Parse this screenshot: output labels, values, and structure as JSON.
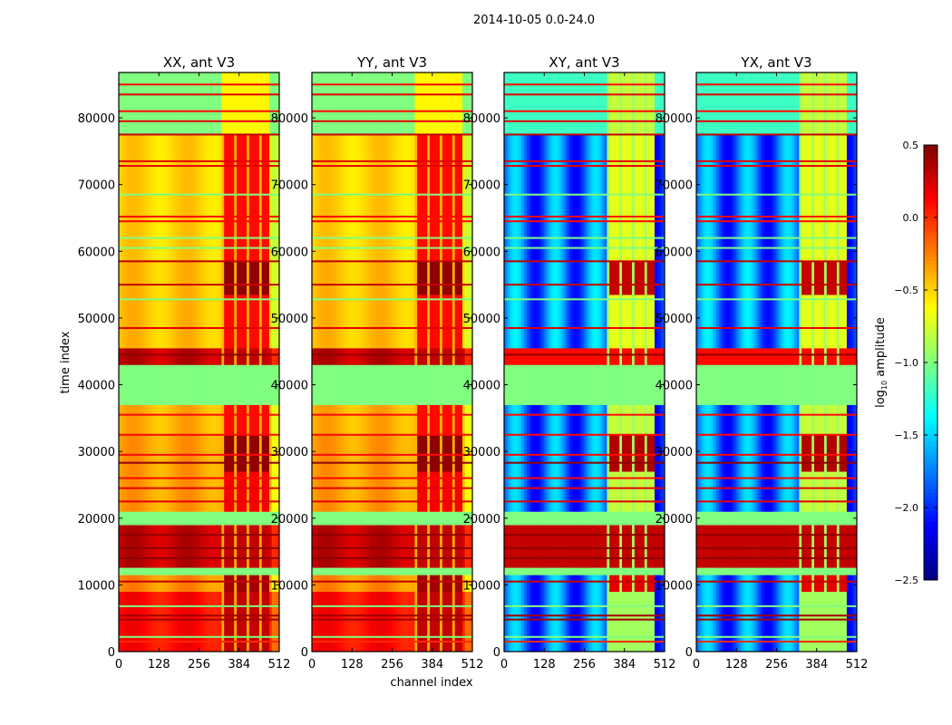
{
  "chart_data": {
    "type": "heatmap",
    "suptitle": "2014-10-05 0.0-24.0",
    "xlabel": "channel index",
    "ylabel": "time index",
    "xlim": [
      0,
      512
    ],
    "ylim": [
      0,
      86800
    ],
    "xticks": [
      "0",
      "128",
      "256",
      "384",
      "512"
    ],
    "xtick_values": [
      0,
      128,
      256,
      384,
      512
    ],
    "yticks": [
      "0",
      "10000",
      "20000",
      "30000",
      "40000",
      "50000",
      "60000",
      "70000",
      "80000"
    ],
    "ytick_values": [
      0,
      10000,
      20000,
      30000,
      40000,
      50000,
      60000,
      70000,
      80000
    ],
    "colormap": "jet",
    "colorbar": {
      "label": "log10 amplitude",
      "label_main": "log",
      "label_sub": "10",
      "label_rest": " amplitude",
      "vmin": -2.5,
      "vmax": 0.5,
      "ticks": [
        "0.5",
        "0.0",
        "−0.5",
        "−1.0",
        "−1.5",
        "−2.0",
        "−2.5"
      ],
      "tick_values": [
        0.5,
        0.0,
        -0.5,
        -1.0,
        -1.5,
        -2.0,
        -2.5
      ]
    },
    "panels": [
      {
        "title": "XX, ant V3",
        "kind": "parallel",
        "show_ylabel": true,
        "show_xlabel": false
      },
      {
        "title": "YY, ant V3",
        "kind": "parallel",
        "show_ylabel": false,
        "show_xlabel": true
      },
      {
        "title": "XY, ant V3",
        "kind": "cross",
        "show_ylabel": false,
        "show_xlabel": false
      },
      {
        "title": "YX, ant V3",
        "kind": "cross",
        "show_ylabel": false,
        "show_xlabel": false
      }
    ],
    "rfi_channel_range": [
      325,
      480
    ],
    "segments": [
      {
        "t": [
          0,
          9000
        ],
        "parallel": 0.1,
        "parallel_rfi": 0.3,
        "cross": -1.8,
        "cross_rfi": -0.9
      },
      {
        "t": [
          9000,
          11500
        ],
        "parallel": -0.3,
        "parallel_rfi": 0.4,
        "cross": -1.8,
        "cross_rfi": 0.2
      },
      {
        "t": [
          11500,
          12600
        ],
        "parallel": -1.0,
        "parallel_rfi": -1.0,
        "cross": -1.0,
        "cross_rfi": -1.0
      },
      {
        "t": [
          12600,
          19000
        ],
        "parallel": 0.3,
        "parallel_rfi": 0.3,
        "cross": 0.3,
        "cross_rfi": 0.3
      },
      {
        "t": [
          19000,
          21000
        ],
        "parallel": -1.0,
        "parallel_rfi": -1.0,
        "cross": -1.0,
        "cross_rfi": -1.0
      },
      {
        "t": [
          21000,
          27000
        ],
        "parallel": -0.35,
        "parallel_rfi": 0.15,
        "cross": -1.8,
        "cross_rfi": -0.8
      },
      {
        "t": [
          27000,
          32500
        ],
        "parallel": -0.35,
        "parallel_rfi": 0.45,
        "cross": -1.8,
        "cross_rfi": 0.35
      },
      {
        "t": [
          32500,
          37000
        ],
        "parallel": -0.4,
        "parallel_rfi": 0.1,
        "cross": -1.8,
        "cross_rfi": -0.8
      },
      {
        "t": [
          37000,
          43000
        ],
        "parallel": -1.0,
        "parallel_rfi": -1.0,
        "cross": -1.0,
        "cross_rfi": -1.0
      },
      {
        "t": [
          43000,
          45500
        ],
        "parallel": 0.3,
        "parallel_rfi": 0.3,
        "cross": 0.1,
        "cross_rfi": 0.1
      },
      {
        "t": [
          45500,
          53500
        ],
        "parallel": -0.45,
        "parallel_rfi": 0.1,
        "cross": -1.75,
        "cross_rfi": -0.7
      },
      {
        "t": [
          53500,
          58500
        ],
        "parallel": -0.45,
        "parallel_rfi": 0.45,
        "cross": -1.75,
        "cross_rfi": 0.3
      },
      {
        "t": [
          58500,
          77500
        ],
        "parallel": -0.5,
        "parallel_rfi": 0.1,
        "cross": -1.8,
        "cross_rfi": -0.7
      },
      {
        "t": [
          77500,
          86800
        ],
        "parallel": -1.0,
        "parallel_rfi": -0.6,
        "cross": -1.2,
        "cross_rfi": -0.8
      }
    ],
    "lines": [
      {
        "t": 1500,
        "value": 0.0
      },
      {
        "t": 2200,
        "value": -1.0
      },
      {
        "t": 4800,
        "value": 0.4
      },
      {
        "t": 5400,
        "value": 0.4
      },
      {
        "t": 6800,
        "value": -1.0
      },
      {
        "t": 10500,
        "value": 0.3
      },
      {
        "t": 14000,
        "value": 0.45
      },
      {
        "t": 15500,
        "value": 0.45
      },
      {
        "t": 17500,
        "value": 0.45
      },
      {
        "t": 22500,
        "value": 0.2
      },
      {
        "t": 24500,
        "value": 0.2
      },
      {
        "t": 26000,
        "value": 0.1
      },
      {
        "t": 28300,
        "value": 0.45
      },
      {
        "t": 29500,
        "value": 0.1
      },
      {
        "t": 32500,
        "value": 0.1
      },
      {
        "t": 35500,
        "value": 0.1
      },
      {
        "t": 44500,
        "value": 0.45
      },
      {
        "t": 48500,
        "value": 0.2
      },
      {
        "t": 52800,
        "value": -1.0
      },
      {
        "t": 55000,
        "value": 0.3
      },
      {
        "t": 58500,
        "value": 0.3
      },
      {
        "t": 60500,
        "value": -1.0
      },
      {
        "t": 62000,
        "value": -1.0
      },
      {
        "t": 64500,
        "value": 0.1
      },
      {
        "t": 65200,
        "value": 0.1
      },
      {
        "t": 68500,
        "value": -1.0
      },
      {
        "t": 72800,
        "value": 0.2
      },
      {
        "t": 73500,
        "value": 0.2
      },
      {
        "t": 77500,
        "value": 0.3
      },
      {
        "t": 79500,
        "value": 0.2
      },
      {
        "t": 81000,
        "value": 0.1
      },
      {
        "t": 83500,
        "value": 0.2
      },
      {
        "t": 85000,
        "value": 0.1
      }
    ]
  }
}
